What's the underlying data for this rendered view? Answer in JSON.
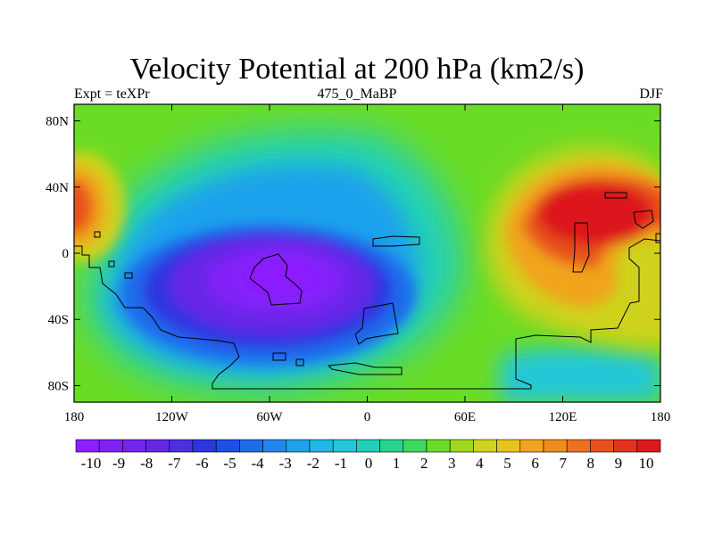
{
  "title": "Velocity Potential at 200 hPa (km2/s)",
  "subtitle_left": "Expt = teXPr",
  "subtitle_center": "475_0_MaBP",
  "subtitle_right": "DJF",
  "lat_labels": [
    "80N",
    "40N",
    "0",
    "40S",
    "80S"
  ],
  "lat_values": [
    80,
    40,
    0,
    -40,
    -80
  ],
  "lon_labels": [
    "180",
    "120W",
    "60W",
    "0",
    "60E",
    "120E",
    "180"
  ],
  "lon_values": [
    -180,
    -120,
    -60,
    0,
    60,
    120,
    180
  ],
  "colorbar": {
    "labels": [
      "-10",
      "-9",
      "-8",
      "-7",
      "-6",
      "-5",
      "-4",
      "-3",
      "-2",
      "-1",
      "0",
      "1",
      "2",
      "3",
      "4",
      "5",
      "6",
      "7",
      "8",
      "9",
      "10"
    ],
    "colors": [
      "#8c1eff",
      "#8021f7",
      "#7424ef",
      "#6626e7",
      "#4c2ee3",
      "#2d35e0",
      "#1e4fe6",
      "#1f6ceb",
      "#1f88ee",
      "#1ea2ec",
      "#1eb9e6",
      "#20c8d8",
      "#20d0b8",
      "#26d38f",
      "#3bd95f",
      "#6bdc25",
      "#a0d81e",
      "#cfd21e",
      "#e8c51e",
      "#f0a41e",
      "#f08c1e",
      "#ec701e",
      "#e8511e",
      "#e3331e",
      "#dc181e"
    ]
  },
  "map_data": {
    "projection": "cylindrical-equidistant",
    "variable": "Velocity Potential at 200 hPa",
    "units": "km2/s",
    "season": "DJF",
    "centers": [
      {
        "name": "negative-center-tropical-south-america",
        "lon": -45,
        "lat": -15,
        "value": -10
      },
      {
        "name": "positive-center-asia",
        "lon": 140,
        "lat": 25,
        "value": 10
      },
      {
        "name": "positive-center-date-line",
        "lon": -178,
        "lat": 30,
        "value": 9
      }
    ]
  }
}
